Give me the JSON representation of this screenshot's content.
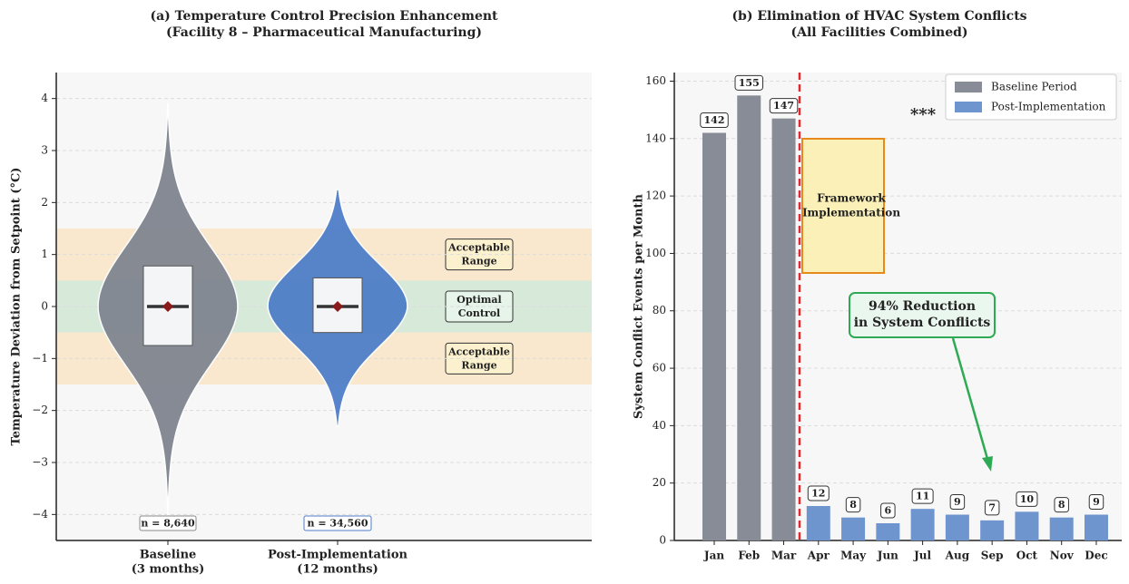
{
  "chart_data": [
    {
      "type": "violin",
      "title": [
        "(a) Temperature Control Precision Enhancement",
        "(Facility 8 – Pharmaceutical Manufacturing)"
      ],
      "ylabel": "Temperature Deviation from Setpoint (°C)",
      "categories": [
        [
          "Baseline",
          "(3 months)"
        ],
        [
          "Post-Implementation",
          "(12 months)"
        ]
      ],
      "ylim": [
        -4.5,
        4.5
      ],
      "yticks": [
        {
          "value": -4,
          "label": "−4"
        },
        {
          "value": -3,
          "label": "−3"
        },
        {
          "value": -2,
          "label": "−2"
        },
        {
          "value": -1,
          "label": "−1"
        },
        0,
        1,
        2,
        3,
        4
      ],
      "grid": true,
      "bands": [
        {
          "label": [
            "Acceptable",
            "Range"
          ],
          "range": [
            -1.5,
            1.5
          ],
          "color": "#f8e6c8"
        },
        {
          "label": [
            "Optimal",
            "Control"
          ],
          "range": [
            -0.5,
            0.5
          ],
          "color": "#d3eadb"
        }
      ],
      "violins": [
        {
          "color": "#7f8590",
          "min": -4.0,
          "max": 3.9,
          "q1": -0.75,
          "q3": 0.78,
          "median": 0,
          "mean": 0,
          "sample_label": "n = 8,640"
        },
        {
          "color": "#4f7ec8",
          "min": -2.3,
          "max": 2.25,
          "q1": -0.5,
          "q3": 0.55,
          "median": 0,
          "mean": 0,
          "sample_label": "n = 34,560"
        }
      ]
    },
    {
      "type": "bar",
      "title": [
        "(b) Elimination of HVAC System Conflicts",
        "(All Facilities Combined)"
      ],
      "ylabel": "System Conflict Events per Month",
      "categories": [
        "Jan",
        "Feb",
        "Mar",
        "Apr",
        "May",
        "Jun",
        "Jul",
        "Aug",
        "Sep",
        "Oct",
        "Nov",
        "Dec"
      ],
      "series": [
        {
          "name": "Baseline Period",
          "color": "#878c96",
          "values": [
            142,
            155,
            147,
            null,
            null,
            null,
            null,
            null,
            null,
            null,
            null,
            null
          ]
        },
        {
          "name": "Post-Implementation",
          "color": "#6f95cf",
          "values": [
            null,
            null,
            null,
            12,
            8,
            6,
            11,
            9,
            7,
            10,
            8,
            9
          ]
        }
      ],
      "ylim": [
        0,
        163
      ],
      "yticks": [
        0,
        20,
        40,
        60,
        80,
        100,
        120,
        140,
        160
      ],
      "grid": true,
      "legend": "upper right",
      "annotations": [
        [
          "Framework",
          "Implementation"
        ],
        [
          "94% Reduction",
          "in System Conflicts"
        ],
        "***"
      ]
    }
  ]
}
